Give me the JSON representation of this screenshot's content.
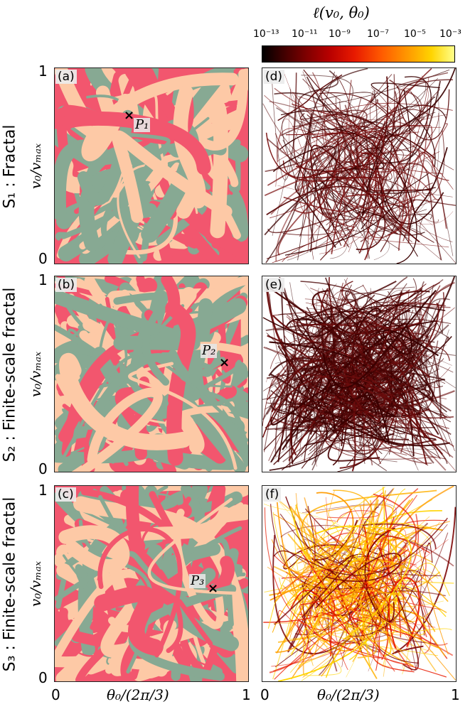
{
  "colorbar": {
    "title": "ℓ(v₀, θ₀)",
    "ticks": [
      "10⁻¹³",
      "10⁻¹¹",
      "10⁻⁹",
      "10⁻⁷",
      "10⁻⁵",
      "10⁻³"
    ]
  },
  "rows": [
    {
      "label": "S₁ : Fractal"
    },
    {
      "label": "S₂ : Finite-scale fractal"
    },
    {
      "label": "S₃ : Finite-scale fractal"
    }
  ],
  "panels": [
    "(a)",
    "(b)",
    "(c)",
    "(d)",
    "(e)",
    "(f)"
  ],
  "axes": {
    "ylabel": "v₀/vₘₐₓ",
    "xlabel": "θ₀/(2π/3)",
    "tick0": "0",
    "tick1": "1"
  },
  "points": [
    "P₁",
    "P₂",
    "P₃"
  ],
  "colors": {
    "pink": "#f2566e",
    "peach": "#fdc9a6",
    "green": "#87a993"
  }
}
